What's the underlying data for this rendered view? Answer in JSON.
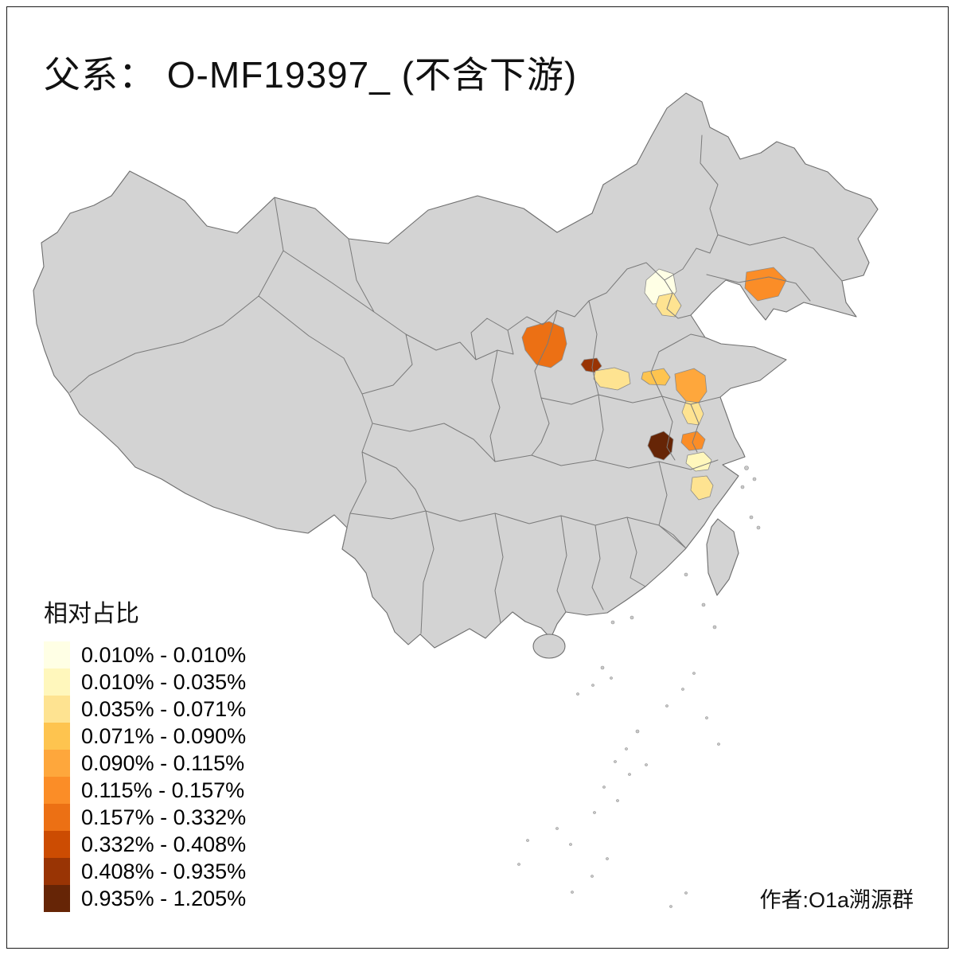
{
  "title": "父系： O-MF19397_ (不含下游)",
  "attribution": "作者:O1a溯源群",
  "legend": {
    "title": "相对占比",
    "classes": [
      {
        "range": "0.010% - 0.010%",
        "color": "#FFFFE5"
      },
      {
        "range": "0.010% - 0.035%",
        "color": "#FFF7BC"
      },
      {
        "range": "0.035% - 0.071%",
        "color": "#FEE391"
      },
      {
        "range": "0.071% - 0.090%",
        "color": "#FEC44F"
      },
      {
        "range": "0.090% - 0.115%",
        "color": "#FEA73C"
      },
      {
        "range": "0.115% - 0.157%",
        "color": "#FB8D27"
      },
      {
        "range": "0.157% - 0.332%",
        "color": "#EC7014"
      },
      {
        "range": "0.332% - 0.408%",
        "color": "#CC4C02"
      },
      {
        "range": "0.408% - 0.935%",
        "color": "#993404"
      },
      {
        "range": "0.935% - 1.205%",
        "color": "#662506"
      }
    ]
  },
  "map": {
    "land_color": "#D3D3D3",
    "border_color": "#7A7A7A",
    "sea_background": "#FFFFFF"
  },
  "chart_data": {
    "type": "heatmap",
    "title": "父系： O-MF19397_ (不含下游)",
    "legend_title": "相对占比",
    "bins": [
      {
        "range": "0.010% - 0.010%",
        "color": "#FFFFE5"
      },
      {
        "range": "0.010% - 0.035%",
        "color": "#FFF7BC"
      },
      {
        "range": "0.035% - 0.071%",
        "color": "#FEE391"
      },
      {
        "range": "0.071% - 0.090%",
        "color": "#FEC44F"
      },
      {
        "range": "0.090% - 0.115%",
        "color": "#FEA73C"
      },
      {
        "range": "0.115% - 0.157%",
        "color": "#FB8D27"
      },
      {
        "range": "0.157% - 0.332%",
        "color": "#EC7014"
      },
      {
        "range": "0.332% - 0.408%",
        "color": "#CC4C02"
      },
      {
        "range": "0.408% - 0.935%",
        "color": "#993404"
      },
      {
        "range": "0.935% - 1.205%",
        "color": "#662506"
      }
    ]
  }
}
